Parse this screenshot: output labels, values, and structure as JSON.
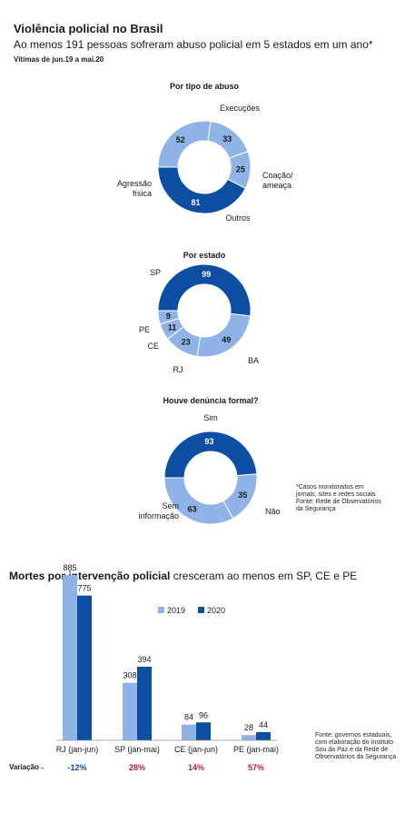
{
  "header": {
    "title": "Violência policial no Brasil",
    "subtitle": "Ao menos 191 pessoas sofreram abuso policial em 5 estados em um ano*",
    "period": "Vítimas de jun.19 a mai.20"
  },
  "colors": {
    "light": "#8fb3e6",
    "dark": "#0b4ea2"
  },
  "note": "*Casos monitorados em\njornais, sites e redes sociais\nFonte: Rede de Observatórios\nda Segurança",
  "chart_data": [
    {
      "type": "pie",
      "title": "Por tipo de abuso",
      "slices": [
        {
          "label": "Execuções",
          "value": 52,
          "color": "#8fb3e6"
        },
        {
          "label": "Coação/ ameaça",
          "value": 33,
          "color": "#8fb3e6"
        },
        {
          "label": "Outros",
          "value": 25,
          "color": "#8fb3e6"
        },
        {
          "label": "Agressão física",
          "value": 81,
          "color": "#0b4ea2"
        }
      ]
    },
    {
      "type": "pie",
      "title": "Por estado",
      "slices": [
        {
          "label": "SP",
          "value": 99,
          "color": "#0b4ea2"
        },
        {
          "label": "BA",
          "value": 49,
          "color": "#8fb3e6"
        },
        {
          "label": "RJ",
          "value": 23,
          "color": "#8fb3e6"
        },
        {
          "label": "CE",
          "value": 11,
          "color": "#8fb3e6"
        },
        {
          "label": "PE",
          "value": 9,
          "color": "#8fb3e6"
        }
      ]
    },
    {
      "type": "pie",
      "title": "Houve denúncia formal?",
      "slices": [
        {
          "label": "Sim",
          "value": 93,
          "color": "#0b4ea2"
        },
        {
          "label": "Não",
          "value": 35,
          "color": "#8fb3e6"
        },
        {
          "label": "Sem informação",
          "value": 63,
          "color": "#8fb3e6"
        }
      ]
    },
    {
      "type": "bar",
      "title": "Mortes por intervenção policial",
      "title_rest": " cresceram ao menos em SP, CE e PE",
      "categories": [
        "RJ (jan-jun)",
        "SP (jan-mai)",
        "CE (jan-jun)",
        "PE (jan-mai)"
      ],
      "series": [
        {
          "name": "2019",
          "values": [
            885,
            308,
            84,
            28
          ],
          "color": "#8fb3e6"
        },
        {
          "name": "2020",
          "values": [
            775,
            394,
            96,
            44
          ],
          "color": "#0b4ea2"
        }
      ],
      "variation_label": "Variação",
      "variation": [
        {
          "text": "-12%",
          "color": "#0b4ea2"
        },
        {
          "text": "28%",
          "color": "#b01e2f"
        },
        {
          "text": "14%",
          "color": "#b01e2f"
        },
        {
          "text": "57%",
          "color": "#b01e2f"
        }
      ],
      "source": "Fonte: governos estaduais, com elaboração do Instituto Sou da Paz e da Rede de Observatórios da Segurança"
    }
  ]
}
